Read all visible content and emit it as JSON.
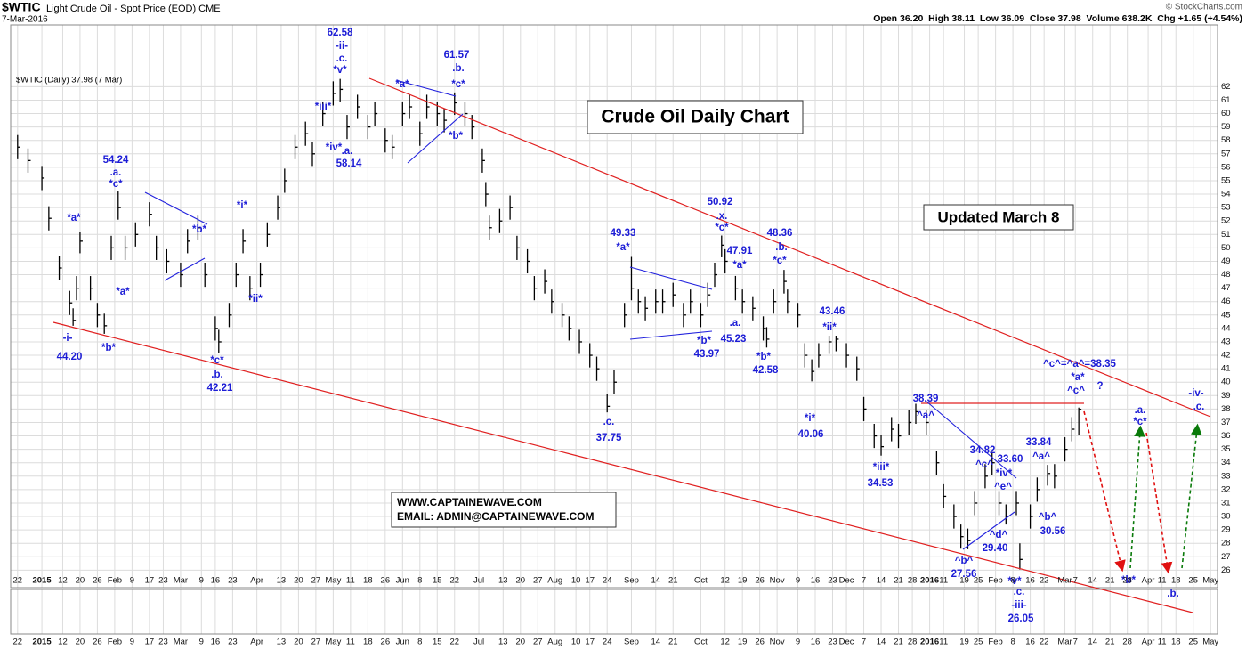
{
  "chart_data": {
    "type": "ohlc",
    "symbol": "$WTIC",
    "title": "Light Crude Oil - Spot Price (EOD) CME",
    "date": "7-Mar-2016",
    "copyright": "© StockCharts.com",
    "quote": "Open 36.20  High 38.11  Low 36.09  Close 37.98  Volume 638.2K  Chg +1.65 (+4.54%)",
    "legend": "$WTIC (Daily) 37.98 (7 Mar)",
    "heading": "Crude Oil Daily Chart",
    "updated": "Updated March 8",
    "website": "WWW.CAPTAINEWAVE.COM",
    "email": "EMAIL: ADMIN@CAPTAINEWAVE.COM",
    "color": "#000000",
    "annotation_color": "#1c1cd6",
    "grid": true,
    "xlim": [
      -2,
      346
    ],
    "ylim": [
      24.7,
      66.6
    ],
    "yticks": [
      26,
      27,
      28,
      29,
      30,
      31,
      32,
      33,
      34,
      35,
      36,
      37,
      38,
      39,
      40,
      41,
      42,
      43,
      44,
      45,
      46,
      47,
      48,
      49,
      50,
      51,
      52,
      53,
      54,
      55,
      56,
      57,
      58,
      59,
      60,
      61,
      62
    ],
    "xticks": [
      {
        "value": 0,
        "label": "22"
      },
      {
        "value": 7,
        "label": "2015"
      },
      {
        "value": 13,
        "label": "12"
      },
      {
        "value": 18,
        "label": "20"
      },
      {
        "value": 23,
        "label": "26"
      },
      {
        "value": 28,
        "label": "Feb"
      },
      {
        "value": 33,
        "label": "9"
      },
      {
        "value": 38,
        "label": "17"
      },
      {
        "value": 42,
        "label": "23"
      },
      {
        "value": 47,
        "label": "Mar"
      },
      {
        "value": 53,
        "label": "9"
      },
      {
        "value": 57,
        "label": "16"
      },
      {
        "value": 62,
        "label": "23"
      },
      {
        "value": 69,
        "label": "Apr"
      },
      {
        "value": 76,
        "label": "13"
      },
      {
        "value": 81,
        "label": "20"
      },
      {
        "value": 86,
        "label": "27"
      },
      {
        "value": 91,
        "label": "May"
      },
      {
        "value": 96,
        "label": "11"
      },
      {
        "value": 101,
        "label": "18"
      },
      {
        "value": 106,
        "label": "26"
      },
      {
        "value": 111,
        "label": "Jun"
      },
      {
        "value": 116,
        "label": "8"
      },
      {
        "value": 121,
        "label": "15"
      },
      {
        "value": 126,
        "label": "22"
      },
      {
        "value": 133,
        "label": "Jul"
      },
      {
        "value": 140,
        "label": "13"
      },
      {
        "value": 145,
        "label": "20"
      },
      {
        "value": 150,
        "label": "27"
      },
      {
        "value": 155,
        "label": "Aug"
      },
      {
        "value": 161,
        "label": "10"
      },
      {
        "value": 165,
        "label": "17"
      },
      {
        "value": 170,
        "label": "24"
      },
      {
        "value": 177,
        "label": "Sep"
      },
      {
        "value": 184,
        "label": "14"
      },
      {
        "value": 189,
        "label": "21"
      },
      {
        "value": 197,
        "label": "Oct"
      },
      {
        "value": 204,
        "label": "12"
      },
      {
        "value": 209,
        "label": "19"
      },
      {
        "value": 214,
        "label": "26"
      },
      {
        "value": 219,
        "label": "Nov"
      },
      {
        "value": 225,
        "label": "9"
      },
      {
        "value": 230,
        "label": "16"
      },
      {
        "value": 235,
        "label": "23"
      },
      {
        "value": 239,
        "label": "Dec"
      },
      {
        "value": 244,
        "label": "7"
      },
      {
        "value": 249,
        "label": "14"
      },
      {
        "value": 254,
        "label": "21"
      },
      {
        "value": 258,
        "label": "28"
      },
      {
        "value": 263,
        "label": "2016"
      },
      {
        "value": 267,
        "label": "11"
      },
      {
        "value": 273,
        "label": "19"
      },
      {
        "value": 277,
        "label": "25"
      },
      {
        "value": 282,
        "label": "Feb"
      },
      {
        "value": 287,
        "label": "8"
      },
      {
        "value": 292,
        "label": "16"
      },
      {
        "value": 296,
        "label": "22"
      },
      {
        "value": 302,
        "label": "Mar"
      },
      {
        "value": 305,
        "label": "7"
      },
      {
        "value": 310,
        "label": "14"
      },
      {
        "value": 315,
        "label": "21"
      },
      {
        "value": 320,
        "label": "28"
      },
      {
        "value": 326,
        "label": "Apr"
      },
      {
        "value": 330,
        "label": "11"
      },
      {
        "value": 334,
        "label": "18"
      },
      {
        "value": 339,
        "label": "25"
      },
      {
        "value": 344,
        "label": "May"
      }
    ],
    "bars": [
      {
        "x": 0,
        "high": 58.4,
        "low": 56.6,
        "close": 57.5
      },
      {
        "x": 3,
        "high": 57.4,
        "low": 55.6,
        "close": 56.5
      },
      {
        "x": 7,
        "high": 56.1,
        "low": 54.3,
        "close": 55.2
      },
      {
        "x": 9,
        "high": 53.1,
        "low": 51.3,
        "close": 52.2
      },
      {
        "x": 12,
        "high": 49.4,
        "low": 47.6,
        "close": 48.5
      },
      {
        "x": 15,
        "high": 46.8,
        "low": 45.0,
        "close": 45.9
      },
      {
        "x": 16,
        "high": 45.5,
        "low": 44.2,
        "close": 44.6
      },
      {
        "x": 17,
        "high": 47.9,
        "low": 46.1,
        "close": 47
      },
      {
        "x": 18,
        "high": 51.2,
        "low": 49.6,
        "close": 50.5
      },
      {
        "x": 21,
        "high": 47.9,
        "low": 46.1,
        "close": 47
      },
      {
        "x": 23,
        "high": 45.9,
        "low": 44.1,
        "close": 45
      },
      {
        "x": 25,
        "high": 45.1,
        "low": 43.6,
        "close": 44.2
      },
      {
        "x": 27,
        "high": 50.9,
        "low": 49.1,
        "close": 50
      },
      {
        "x": 29,
        "high": 54.2,
        "low": 52.1,
        "close": 53
      },
      {
        "x": 31,
        "high": 50.9,
        "low": 49.1,
        "close": 50
      },
      {
        "x": 34,
        "high": 51.9,
        "low": 50.1,
        "close": 51
      },
      {
        "x": 38,
        "high": 53.4,
        "low": 51.6,
        "close": 52.5
      },
      {
        "x": 40,
        "high": 50.9,
        "low": 49.1,
        "close": 50
      },
      {
        "x": 43,
        "high": 49.9,
        "low": 48.1,
        "close": 49
      },
      {
        "x": 47,
        "high": 48.9,
        "low": 47.1,
        "close": 48
      },
      {
        "x": 49,
        "high": 51.4,
        "low": 49.6,
        "close": 50.5
      },
      {
        "x": 52,
        "high": 52.4,
        "low": 50.6,
        "close": 51.5
      },
      {
        "x": 54,
        "high": 48.9,
        "low": 47.1,
        "close": 48
      },
      {
        "x": 57,
        "high": 44.9,
        "low": 43.1,
        "close": 44
      },
      {
        "x": 58,
        "high": 43.9,
        "low": 42.2,
        "close": 43
      },
      {
        "x": 61,
        "high": 45.9,
        "low": 44.1,
        "close": 45
      },
      {
        "x": 63,
        "high": 48.9,
        "low": 47.1,
        "close": 48
      },
      {
        "x": 65,
        "high": 51.4,
        "low": 49.6,
        "close": 50.5
      },
      {
        "x": 67,
        "high": 47.9,
        "low": 46.1,
        "close": 47
      },
      {
        "x": 70,
        "high": 48.9,
        "low": 47.1,
        "close": 48
      },
      {
        "x": 72,
        "high": 51.9,
        "low": 50.1,
        "close": 51
      },
      {
        "x": 75,
        "high": 53.9,
        "low": 52.1,
        "close": 53
      },
      {
        "x": 77,
        "high": 55.9,
        "low": 54.1,
        "close": 55
      },
      {
        "x": 80,
        "high": 58.4,
        "low": 56.6,
        "close": 57.5
      },
      {
        "x": 83,
        "high": 59.4,
        "low": 57.6,
        "close": 58.5
      },
      {
        "x": 85,
        "high": 57.9,
        "low": 56.1,
        "close": 57
      },
      {
        "x": 88,
        "high": 60.9,
        "low": 59.1,
        "close": 60
      },
      {
        "x": 91,
        "high": 62.4,
        "low": 60.6,
        "close": 61.5
      },
      {
        "x": 93,
        "high": 62.58,
        "low": 60.9,
        "close": 61.8
      },
      {
        "x": 95,
        "high": 59.9,
        "low": 58.1,
        "close": 59
      },
      {
        "x": 98,
        "high": 61.4,
        "low": 59.6,
        "close": 60.5
      },
      {
        "x": 101,
        "high": 59.9,
        "low": 58.1,
        "close": 59
      },
      {
        "x": 103,
        "high": 60.9,
        "low": 59.1,
        "close": 60
      },
      {
        "x": 106,
        "high": 58.9,
        "low": 57.1,
        "close": 58
      },
      {
        "x": 108,
        "high": 58.4,
        "low": 56.6,
        "close": 57.5
      },
      {
        "x": 111,
        "high": 60.9,
        "low": 59.1,
        "close": 60
      },
      {
        "x": 113,
        "high": 61.4,
        "low": 59.6,
        "close": 60.5
      },
      {
        "x": 116,
        "high": 59.4,
        "low": 57.6,
        "close": 58.5
      },
      {
        "x": 118,
        "high": 61.4,
        "low": 59.6,
        "close": 60.5
      },
      {
        "x": 121,
        "high": 60.9,
        "low": 59.1,
        "close": 60
      },
      {
        "x": 123,
        "high": 60.4,
        "low": 58.6,
        "close": 59.5
      },
      {
        "x": 126,
        "high": 61.57,
        "low": 59.9,
        "close": 60.8
      },
      {
        "x": 129,
        "high": 60.9,
        "low": 59.1,
        "close": 60
      },
      {
        "x": 131,
        "high": 59.9,
        "low": 58.1,
        "close": 59
      },
      {
        "x": 134,
        "high": 57.4,
        "low": 55.6,
        "close": 56.5
      },
      {
        "x": 135,
        "high": 54.9,
        "low": 53.1,
        "close": 54
      },
      {
        "x": 136,
        "high": 52.4,
        "low": 50.6,
        "close": 51.5
      },
      {
        "x": 139,
        "high": 52.9,
        "low": 51.1,
        "close": 52
      },
      {
        "x": 142,
        "high": 53.9,
        "low": 52.1,
        "close": 53
      },
      {
        "x": 144,
        "high": 50.9,
        "low": 49.1,
        "close": 50
      },
      {
        "x": 147,
        "high": 49.9,
        "low": 48.1,
        "close": 49
      },
      {
        "x": 149,
        "high": 47.9,
        "low": 46.1,
        "close": 47
      },
      {
        "x": 152,
        "high": 48.4,
        "low": 46.6,
        "close": 47.5
      },
      {
        "x": 154,
        "high": 46.9,
        "low": 45.1,
        "close": 46
      },
      {
        "x": 157,
        "high": 45.9,
        "low": 44.1,
        "close": 45
      },
      {
        "x": 159,
        "high": 44.9,
        "low": 43.1,
        "close": 44
      },
      {
        "x": 162,
        "high": 43.9,
        "low": 42.1,
        "close": 43
      },
      {
        "x": 165,
        "high": 42.9,
        "low": 41.1,
        "close": 42
      },
      {
        "x": 167,
        "high": 41.9,
        "low": 40.1,
        "close": 41
      },
      {
        "x": 170,
        "high": 39.1,
        "low": 37.75,
        "close": 38.2
      },
      {
        "x": 172,
        "high": 40.9,
        "low": 39.1,
        "close": 40
      },
      {
        "x": 175,
        "high": 45.9,
        "low": 44.1,
        "close": 45
      },
      {
        "x": 177,
        "high": 49.33,
        "low": 46.1,
        "close": 47
      },
      {
        "x": 179,
        "high": 46.9,
        "low": 45.1,
        "close": 46
      },
      {
        "x": 181,
        "high": 46.4,
        "low": 44.6,
        "close": 45.5
      },
      {
        "x": 184,
        "high": 46.9,
        "low": 45.1,
        "close": 46
      },
      {
        "x": 186,
        "high": 46.9,
        "low": 45.1,
        "close": 46
      },
      {
        "x": 189,
        "high": 47.4,
        "low": 45.6,
        "close": 46.5
      },
      {
        "x": 192,
        "high": 45.9,
        "low": 44.1,
        "close": 45
      },
      {
        "x": 194,
        "high": 46.9,
        "low": 45.1,
        "close": 46
      },
      {
        "x": 197,
        "high": 45.9,
        "low": 44.1,
        "close": 45
      },
      {
        "x": 199,
        "high": 47.4,
        "low": 45.6,
        "close": 46.5
      },
      {
        "x": 201,
        "high": 48.9,
        "low": 47.1,
        "close": 48
      },
      {
        "x": 203,
        "high": 50.92,
        "low": 49.3,
        "close": 50.2
      },
      {
        "x": 204,
        "high": 49.9,
        "low": 48.1,
        "close": 49
      },
      {
        "x": 207,
        "high": 47.91,
        "low": 46.1,
        "close": 47
      },
      {
        "x": 209,
        "high": 46.9,
        "low": 45.1,
        "close": 46
      },
      {
        "x": 212,
        "high": 46.4,
        "low": 44.6,
        "close": 45.5
      },
      {
        "x": 215,
        "high": 44.9,
        "low": 43.1,
        "close": 44
      },
      {
        "x": 216,
        "high": 44.1,
        "low": 42.58,
        "close": 43.2
      },
      {
        "x": 218,
        "high": 46.9,
        "low": 45.1,
        "close": 46
      },
      {
        "x": 221,
        "high": 48.36,
        "low": 46.6,
        "close": 47.5
      },
      {
        "x": 222,
        "high": 46.9,
        "low": 45.1,
        "close": 46
      },
      {
        "x": 225,
        "high": 45.9,
        "low": 44.1,
        "close": 45
      },
      {
        "x": 227,
        "high": 42.9,
        "low": 41.1,
        "close": 42
      },
      {
        "x": 229,
        "high": 41.7,
        "low": 40.06,
        "close": 40.8
      },
      {
        "x": 231,
        "high": 42.9,
        "low": 41.1,
        "close": 42
      },
      {
        "x": 234,
        "high": 43.46,
        "low": 42.1,
        "close": 43
      },
      {
        "x": 236,
        "high": 43.46,
        "low": 42.3,
        "close": 43.2
      },
      {
        "x": 239,
        "high": 42.9,
        "low": 41.1,
        "close": 42
      },
      {
        "x": 242,
        "high": 41.9,
        "low": 40.1,
        "close": 41
      },
      {
        "x": 244,
        "high": 38.9,
        "low": 37.1,
        "close": 38
      },
      {
        "x": 247,
        "high": 36.9,
        "low": 35.1,
        "close": 36
      },
      {
        "x": 249,
        "high": 36.1,
        "low": 34.53,
        "close": 35.2
      },
      {
        "x": 252,
        "high": 37.4,
        "low": 35.6,
        "close": 36.5
      },
      {
        "x": 254,
        "high": 36.9,
        "low": 35.1,
        "close": 36
      },
      {
        "x": 257,
        "high": 37.9,
        "low": 36.1,
        "close": 37
      },
      {
        "x": 259,
        "high": 38.39,
        "low": 36.9,
        "close": 37.8
      },
      {
        "x": 262,
        "high": 37.9,
        "low": 36.1,
        "close": 37
      },
      {
        "x": 265,
        "high": 34.9,
        "low": 33.1,
        "close": 34
      },
      {
        "x": 267,
        "high": 32.4,
        "low": 30.6,
        "close": 31.5
      },
      {
        "x": 270,
        "high": 30.9,
        "low": 29.1,
        "close": 30
      },
      {
        "x": 272,
        "high": 29.4,
        "low": 27.6,
        "close": 28.5
      },
      {
        "x": 274,
        "high": 29.1,
        "low": 27.56,
        "close": 28.2
      },
      {
        "x": 276,
        "high": 31.9,
        "low": 30.1,
        "close": 31
      },
      {
        "x": 279,
        "high": 33.9,
        "low": 32.1,
        "close": 33
      },
      {
        "x": 281,
        "high": 34.82,
        "low": 33.1,
        "close": 34
      },
      {
        "x": 283,
        "high": 31.9,
        "low": 30.1,
        "close": 31
      },
      {
        "x": 285,
        "high": 30.9,
        "low": 29.4,
        "close": 30
      },
      {
        "x": 288,
        "high": 31.9,
        "low": 30.1,
        "close": 31
      },
      {
        "x": 289,
        "high": 28.0,
        "low": 26.05,
        "close": 26.8
      },
      {
        "x": 292,
        "high": 30.9,
        "low": 29.1,
        "close": 30
      },
      {
        "x": 294,
        "high": 32.9,
        "low": 31.1,
        "close": 32
      },
      {
        "x": 297,
        "high": 33.84,
        "low": 32.3,
        "close": 33.2
      },
      {
        "x": 299,
        "high": 33.9,
        "low": 32.1,
        "close": 33
      },
      {
        "x": 302,
        "high": 35.9,
        "low": 34.1,
        "close": 35
      },
      {
        "x": 304,
        "high": 37.4,
        "low": 35.6,
        "close": 36.5
      },
      {
        "x": 306,
        "high": 38.11,
        "low": 36.09,
        "close": 37.98
      }
    ],
    "annotations": [
      "62.58",
      "-ii-",
      ".c.",
      "*v*",
      "61.57",
      ".b.",
      "*c*",
      "*a*",
      "*iii*",
      "*iv*",
      ".a.",
      "58.14",
      "*b*",
      "54.24",
      ".a.",
      "*c*",
      "*a*",
      "*b*",
      "*i*",
      "*a*",
      "*ii*",
      "-i-",
      "44.20",
      "*b*",
      "*c*",
      ".b.",
      "42.21",
      "49.33",
      "*a*",
      "50.92",
      ".x.",
      "*c*",
      "48.36",
      ".b.",
      "*c*",
      "47.91",
      "*a*",
      ".a.",
      "45.23",
      "*b*",
      "43.97",
      "*b*",
      "42.58",
      "43.46",
      "*ii*",
      "*i*",
      "40.06",
      ".c.",
      "37.75",
      "38.39",
      "^a^",
      "*iii*",
      "34.53",
      "34.82",
      "^c^",
      "33.60",
      "*iv*",
      "^e^",
      "33.84",
      "^a^",
      "^b^",
      "30.56",
      "^d^",
      "29.40",
      "^b^",
      "27.56",
      "*v*",
      ".c.",
      "-iii-",
      "26.05",
      "^c^=^a^=38.35",
      "*a*",
      "^c^",
      "?",
      ".a.",
      "*c*",
      "*b*",
      ".b.",
      "-iv-",
      ".c."
    ]
  }
}
